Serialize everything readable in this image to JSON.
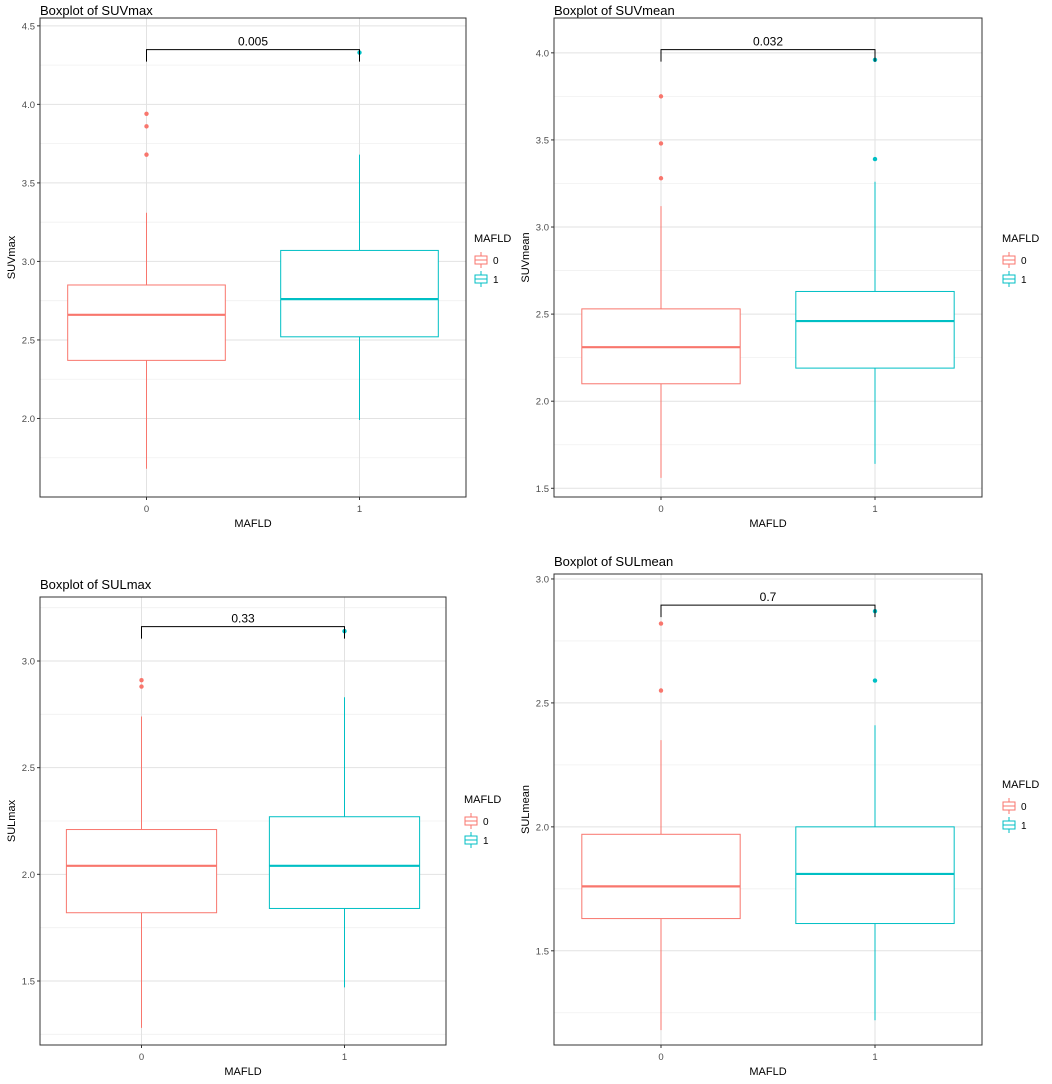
{
  "chart_data": [
    {
      "type": "boxplot",
      "title": "Boxplot of SUVmax",
      "xlabel": "MAFLD",
      "ylabel": "SUVmax",
      "ylim": [
        1.5,
        4.55
      ],
      "y_ticks": [
        "2.0",
        "2.5",
        "3.0",
        "3.5",
        "4.0",
        "4.5"
      ],
      "categories": [
        "0",
        "1"
      ],
      "grid": true,
      "legend": {
        "title": "MAFLD",
        "entries": [
          "0",
          "1"
        ],
        "position": "right"
      },
      "colors": [
        "#F8766D",
        "#00BFC4"
      ],
      "comparison": {
        "label": "0.005"
      },
      "groups": [
        {
          "category": "0",
          "whisker_low": 1.68,
          "q1": 2.37,
          "median": 2.66,
          "q3": 2.85,
          "whisker_high": 3.31,
          "outliers": [
            3.68,
            3.86,
            3.94
          ]
        },
        {
          "category": "1",
          "whisker_low": 1.99,
          "q1": 2.52,
          "median": 2.76,
          "q3": 3.07,
          "whisker_high": 3.68,
          "outliers": [
            4.33
          ]
        }
      ]
    },
    {
      "type": "boxplot",
      "title": "Boxplot of SUVmean",
      "xlabel": "MAFLD",
      "ylabel": "SUVmean",
      "ylim": [
        1.45,
        4.2
      ],
      "y_ticks": [
        "1.5",
        "2.0",
        "2.5",
        "3.0",
        "3.5",
        "4.0"
      ],
      "categories": [
        "0",
        "1"
      ],
      "grid": true,
      "legend": {
        "title": "MAFLD",
        "entries": [
          "0",
          "1"
        ],
        "position": "right"
      },
      "colors": [
        "#F8766D",
        "#00BFC4"
      ],
      "comparison": {
        "label": "0.032"
      },
      "groups": [
        {
          "category": "0",
          "whisker_low": 1.56,
          "q1": 2.1,
          "median": 2.31,
          "q3": 2.53,
          "whisker_high": 3.12,
          "outliers": [
            3.28,
            3.48,
            3.75
          ]
        },
        {
          "category": "1",
          "whisker_low": 1.64,
          "q1": 2.19,
          "median": 2.46,
          "q3": 2.63,
          "whisker_high": 3.26,
          "outliers": [
            3.39,
            3.96
          ]
        }
      ]
    },
    {
      "type": "boxplot",
      "title": "Boxplot of SULmax",
      "xlabel": "MAFLD",
      "ylabel": "SULmax",
      "ylim": [
        1.2,
        3.3
      ],
      "y_ticks": [
        "1.5",
        "2.0",
        "2.5",
        "3.0"
      ],
      "categories": [
        "0",
        "1"
      ],
      "grid": true,
      "legend": {
        "title": "MAFLD",
        "entries": [
          "0",
          "1"
        ],
        "position": "right"
      },
      "colors": [
        "#F8766D",
        "#00BFC4"
      ],
      "comparison": {
        "label": "0.33"
      },
      "groups": [
        {
          "category": "0",
          "whisker_low": 1.28,
          "q1": 1.82,
          "median": 2.04,
          "q3": 2.21,
          "whisker_high": 2.74,
          "outliers": [
            2.88,
            2.91
          ]
        },
        {
          "category": "1",
          "whisker_low": 1.47,
          "q1": 1.84,
          "median": 2.04,
          "q3": 2.27,
          "whisker_high": 2.83,
          "outliers": [
            3.14
          ]
        }
      ]
    },
    {
      "type": "boxplot",
      "title": "Boxplot of SULmean",
      "xlabel": "MAFLD",
      "ylabel": "SULmean",
      "ylim": [
        1.12,
        3.02
      ],
      "y_ticks": [
        "1.5",
        "2.0",
        "2.5",
        "3.0"
      ],
      "categories": [
        "0",
        "1"
      ],
      "grid": true,
      "legend": {
        "title": "MAFLD",
        "entries": [
          "0",
          "1"
        ],
        "position": "right"
      },
      "colors": [
        "#F8766D",
        "#00BFC4"
      ],
      "comparison": {
        "label": "0.7"
      },
      "groups": [
        {
          "category": "0",
          "whisker_low": 1.18,
          "q1": 1.63,
          "median": 1.76,
          "q3": 1.97,
          "whisker_high": 2.35,
          "outliers": [
            2.55,
            2.82
          ]
        },
        {
          "category": "1",
          "whisker_low": 1.22,
          "q1": 1.61,
          "median": 1.81,
          "q3": 2.0,
          "whisker_high": 2.41,
          "outliers": [
            2.59,
            2.87
          ]
        }
      ]
    }
  ]
}
